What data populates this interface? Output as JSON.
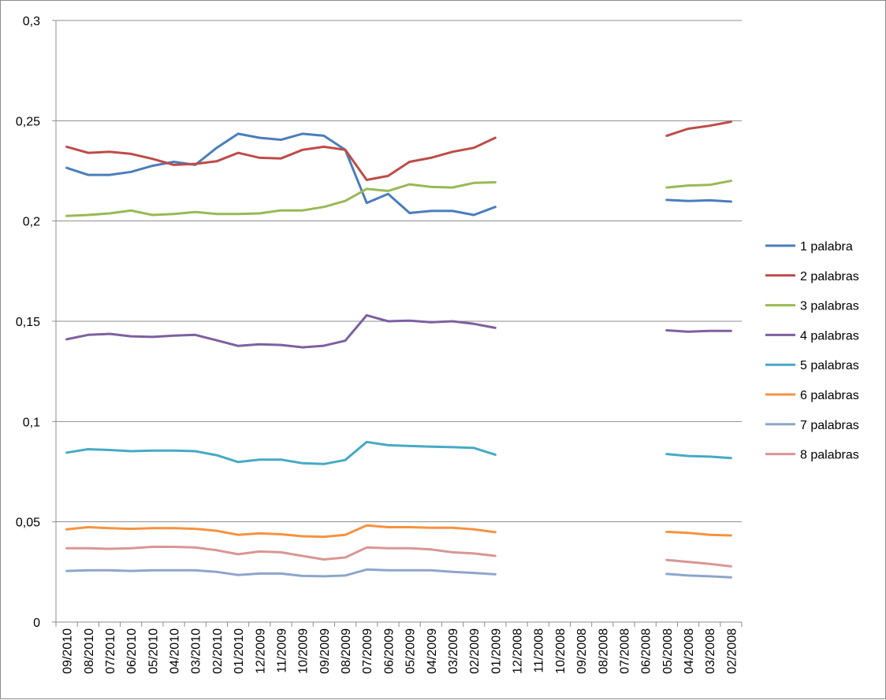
{
  "chart_data": {
    "type": "line",
    "title": "",
    "xlabel": "",
    "ylabel": "",
    "ylim": [
      0,
      0.3
    ],
    "yticks": [
      "0",
      "0,05",
      "0,1",
      "0,15",
      "0,2",
      "0,25",
      "0,3"
    ],
    "grid": "horizontal",
    "legend": "right",
    "categories": [
      "09/2010",
      "08/2010",
      "07/2010",
      "06/2010",
      "05/2010",
      "04/2010",
      "03/2010",
      "02/2010",
      "01/2010",
      "12/2009",
      "11/2009",
      "10/2009",
      "09/2009",
      "08/2009",
      "07/2009",
      "06/2009",
      "05/2009",
      "04/2009",
      "03/2009",
      "02/2009",
      "01/2009",
      "12/2008",
      "11/2008",
      "10/2008",
      "09/2008",
      "08/2008",
      "07/2008",
      "06/2008",
      "05/2008",
      "04/2008",
      "03/2008",
      "02/2008"
    ],
    "series": [
      {
        "name": "1 palabra",
        "color": "#4a7ebb",
        "values": [
          0.2265,
          0.223,
          0.223,
          0.2245,
          0.2275,
          0.2295,
          0.228,
          0.2365,
          0.2435,
          0.2415,
          0.2405,
          0.2435,
          0.2425,
          0.2355,
          0.209,
          0.2135,
          0.204,
          0.205,
          0.205,
          0.203,
          0.207,
          null,
          null,
          null,
          null,
          null,
          null,
          null,
          0.2105,
          0.21,
          0.2103,
          0.2097
        ]
      },
      {
        "name": "2 palabras",
        "color": "#be4b48",
        "values": [
          0.237,
          0.234,
          0.2345,
          0.2335,
          0.231,
          0.228,
          0.2285,
          0.2298,
          0.234,
          0.2315,
          0.2312,
          0.2355,
          0.237,
          0.2355,
          0.2205,
          0.2225,
          0.2295,
          0.2315,
          0.2345,
          0.2365,
          0.2415,
          null,
          null,
          null,
          null,
          null,
          null,
          null,
          0.2425,
          0.246,
          0.2475,
          0.2495
        ]
      },
      {
        "name": "3 palabras",
        "color": "#98b954",
        "values": [
          0.2025,
          0.203,
          0.2038,
          0.2052,
          0.203,
          0.2035,
          0.2045,
          0.2035,
          0.2035,
          0.2038,
          0.2053,
          0.2053,
          0.207,
          0.21,
          0.216,
          0.215,
          0.2183,
          0.217,
          0.2167,
          0.219,
          0.2193,
          null,
          null,
          null,
          null,
          null,
          null,
          null,
          0.2167,
          0.2177,
          0.218,
          0.22
        ]
      },
      {
        "name": "4 palabras",
        "color": "#7d60a0",
        "values": [
          0.141,
          0.1432,
          0.1437,
          0.1425,
          0.1422,
          0.1428,
          0.1432,
          0.1405,
          0.1377,
          0.1385,
          0.1382,
          0.137,
          0.1378,
          0.1403,
          0.153,
          0.15,
          0.1503,
          0.1495,
          0.15,
          0.1487,
          0.1467,
          null,
          null,
          null,
          null,
          null,
          null,
          null,
          0.1455,
          0.1448,
          0.1452,
          0.1452
        ]
      },
      {
        "name": "5 palabras",
        "color": "#46aac5",
        "values": [
          0.0845,
          0.0862,
          0.0858,
          0.0852,
          0.0855,
          0.0855,
          0.0852,
          0.0832,
          0.0798,
          0.081,
          0.081,
          0.0792,
          0.0788,
          0.0808,
          0.0898,
          0.0882,
          0.0878,
          0.0875,
          0.0872,
          0.0868,
          0.0835,
          null,
          null,
          null,
          null,
          null,
          null,
          null,
          0.0838,
          0.0828,
          0.0825,
          0.0818
        ]
      },
      {
        "name": "6 palabras",
        "color": "#f69240",
        "values": [
          0.0462,
          0.0473,
          0.0468,
          0.0465,
          0.0468,
          0.0468,
          0.0465,
          0.0455,
          0.0435,
          0.0442,
          0.0438,
          0.0428,
          0.0425,
          0.0435,
          0.0482,
          0.0473,
          0.0473,
          0.047,
          0.047,
          0.0462,
          0.0448,
          null,
          null,
          null,
          null,
          null,
          null,
          null,
          0.045,
          0.0445,
          0.0435,
          0.0432
        ]
      },
      {
        "name": "7 palabras",
        "color": "#8ea5cb",
        "values": [
          0.0255,
          0.0258,
          0.0258,
          0.0255,
          0.0258,
          0.0258,
          0.0258,
          0.025,
          0.0235,
          0.0242,
          0.0242,
          0.023,
          0.0228,
          0.0232,
          0.0262,
          0.0258,
          0.0258,
          0.0258,
          0.025,
          0.0245,
          0.0238,
          null,
          null,
          null,
          null,
          null,
          null,
          null,
          0.024,
          0.0232,
          0.0228,
          0.0223
        ]
      },
      {
        "name": "8 palabras",
        "color": "#d99694",
        "values": [
          0.0368,
          0.0368,
          0.0365,
          0.0368,
          0.0375,
          0.0375,
          0.0372,
          0.0358,
          0.0338,
          0.0352,
          0.0348,
          0.033,
          0.0312,
          0.0322,
          0.0372,
          0.0368,
          0.0368,
          0.0362,
          0.0348,
          0.0342,
          0.033,
          null,
          null,
          null,
          null,
          null,
          null,
          null,
          0.031,
          0.03,
          0.029,
          0.0278
        ]
      }
    ]
  }
}
